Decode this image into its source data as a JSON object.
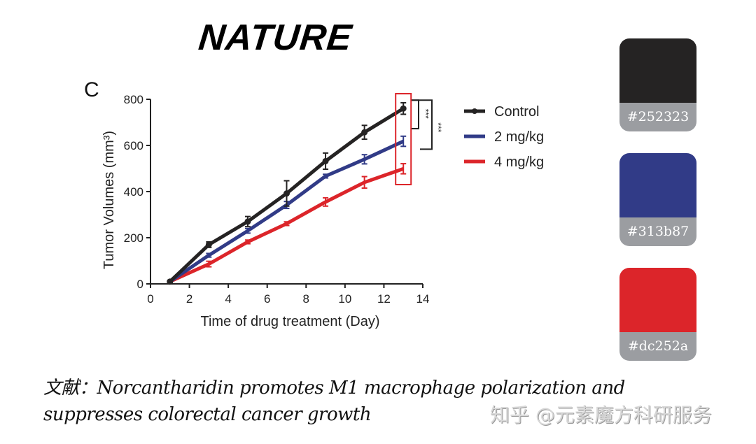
{
  "logo_text": "NATURE",
  "panel_label": "C",
  "chart_data": {
    "type": "line",
    "xlabel": "Time of drug treatment (Day)",
    "ylabel": "Tumor Volumes (mm³)",
    "xlim": [
      0,
      14
    ],
    "ylim": [
      0,
      800
    ],
    "xticks": [
      0,
      2,
      4,
      6,
      8,
      10,
      12,
      14
    ],
    "yticks": [
      0,
      200,
      400,
      600,
      800
    ],
    "x": [
      1,
      3,
      5,
      7,
      9,
      11,
      13
    ],
    "legend_position": "right",
    "series": [
      {
        "name": "Control",
        "color": "#252323",
        "values": [
          10,
          170,
          270,
          392,
          532,
          657,
          760
        ],
        "errors": [
          4,
          12,
          22,
          55,
          35,
          30,
          25
        ],
        "markers": true
      },
      {
        "name": "2 mg/kg",
        "color": "#313b87",
        "values": [
          10,
          124,
          230,
          342,
          467,
          540,
          618
        ],
        "errors": [
          4,
          8,
          10,
          15,
          8,
          20,
          22
        ]
      },
      {
        "name": "4 mg/kg",
        "color": "#dc252a",
        "values": [
          10,
          86,
          182,
          261,
          355,
          440,
          499
        ],
        "errors": [
          4,
          12,
          8,
          8,
          18,
          25,
          22
        ]
      }
    ],
    "annotations": [
      {
        "text": "***",
        "compare": [
          "Control",
          "2 mg/kg"
        ]
      },
      {
        "text": "***",
        "compare": [
          "Control",
          "4 mg/kg"
        ]
      }
    ],
    "highlight_box_x": 13,
    "highlight_color": "#dc252a"
  },
  "swatches": [
    {
      "hex": "#252323",
      "label": "#252323"
    },
    {
      "hex": "#313b87",
      "label": "#313b87"
    },
    {
      "hex": "#dc252a",
      "label": "#dc252a"
    }
  ],
  "caption": {
    "line1": "文献：Norcantharidin promotes M1 macrophage polarization and",
    "line2": "suppresses colorectal cancer growth"
  },
  "watermark": "知乎 @元素魔方科研服务"
}
